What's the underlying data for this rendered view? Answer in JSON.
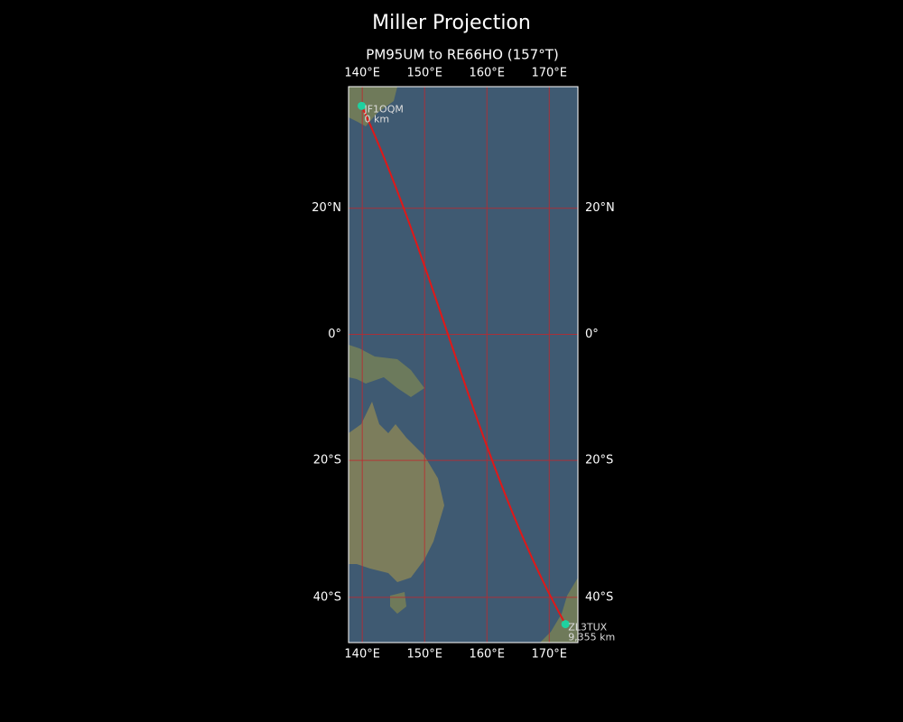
{
  "title": "Miller Projection",
  "subtitle": "PM95UM to RE66HO (157°T)",
  "map": {
    "projection": "miller",
    "lonlim": [
      137.8,
      174.6
    ],
    "latlim": [
      -46.0,
      37.9
    ],
    "xticks": [
      {
        "value": 140,
        "label": "140°E"
      },
      {
        "value": 150,
        "label": "150°E"
      },
      {
        "value": 160,
        "label": "160°E"
      },
      {
        "value": 170,
        "label": "170°E"
      }
    ],
    "yticks": [
      {
        "value": 20,
        "label": "20°N"
      },
      {
        "value": 0,
        "label": "0°"
      },
      {
        "value": -20,
        "label": "20°S"
      },
      {
        "value": -40,
        "label": "40°S"
      }
    ],
    "grid_color": "#c0272d",
    "path_color": "#e01818",
    "marker_color": "#1fd1a0",
    "stations": [
      {
        "name": "JF1OQM",
        "distance": "0 km",
        "lon": 139.9,
        "lat": 35.2
      },
      {
        "name": "ZL3TUX",
        "distance": "9,355 km",
        "lon": 172.6,
        "lat": -43.6
      }
    ]
  }
}
